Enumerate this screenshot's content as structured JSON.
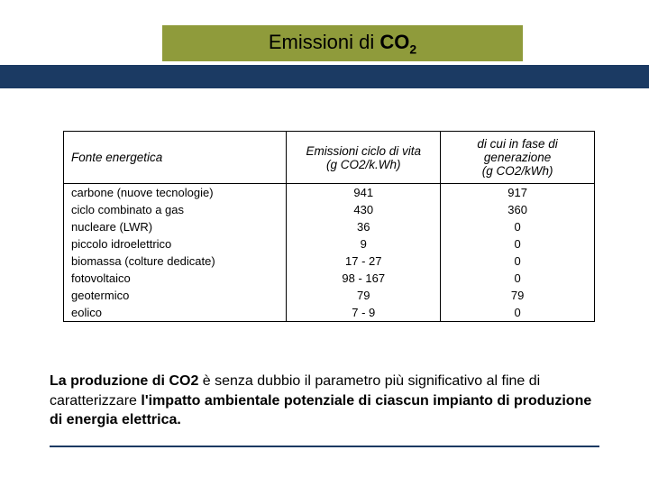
{
  "header": {
    "title_prefix": "Emissioni di ",
    "title_co": "CO",
    "title_sub": "2",
    "title_bar_color": "#8f9b3b",
    "blue_bar_color": "#1b3a63"
  },
  "table": {
    "columns": [
      "Fonte energetica",
      "Emissioni ciclo di vita\n(g CO2/k.Wh)",
      "di cui in fase di generazione\n(g CO2/kWh)"
    ],
    "col0": "Fonte energetica",
    "col1_line1": "Emissioni ciclo di vita",
    "col1_line2": "(g CO2/k.Wh)",
    "col2_line1": "di cui in fase di generazione",
    "col2_line2": "(g CO2/kWh)",
    "rows": [
      [
        "carbone (nuove tecnologie)",
        "941",
        "917"
      ],
      [
        "ciclo combinato a gas",
        "430",
        "360"
      ],
      [
        "nucleare (LWR)",
        "36",
        "0"
      ],
      [
        "piccolo idroelettrico",
        "9",
        "0"
      ],
      [
        "biomassa (colture dedicate)",
        "17 - 27",
        "0"
      ],
      [
        "fotovoltaico",
        "98 - 167",
        "0"
      ],
      [
        "geotermico",
        "79",
        "79"
      ],
      [
        "eolico",
        "7 - 9",
        "0"
      ]
    ]
  },
  "caption": {
    "part1_bold": "La produzione di CO2",
    "part2": " è senza dubbio il parametro più significativo al fine di caratterizzare ",
    "part3_bold": "l'impatto ambientale potenziale di ciascun impianto di produzione di energia elettrica."
  },
  "styling": {
    "body_width": 720,
    "body_height": 540,
    "font_family": "Arial, Helvetica, sans-serif",
    "title_fontsize": 22,
    "table_fontsize": 13.5,
    "caption_fontsize": 16,
    "border_color": "#000000",
    "background_color": "#ffffff",
    "footer_line_color": "#1b3a63"
  }
}
